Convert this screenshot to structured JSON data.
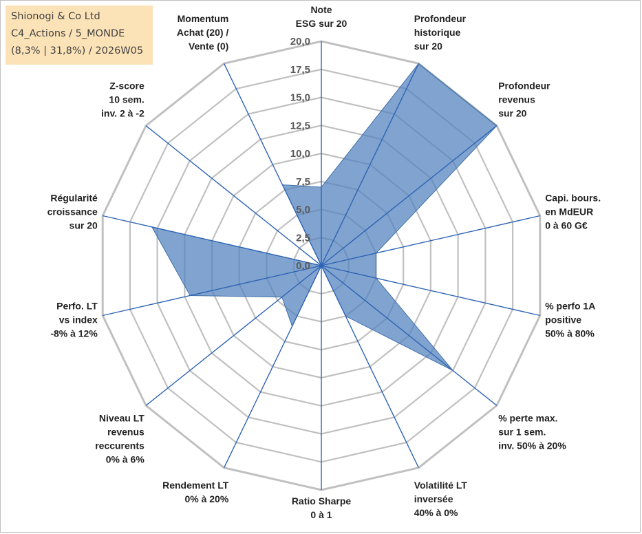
{
  "title_box": {
    "line1": "Shionogi & Co Ltd",
    "line2": "C4_Actions / 5_MONDE",
    "line3": "(8,3% | 31,8%) / 2026W05"
  },
  "colors": {
    "fill": "#4f81bd",
    "spoke": "#2e63b5",
    "grid": "#c0c0c0",
    "title_bg": "#fbe3b7"
  },
  "chart_data": {
    "type": "radar",
    "rmax": 20,
    "tick_labels": [
      "0,0",
      "2,5",
      "5,0",
      "7,5",
      "10,0",
      "12,5",
      "15,0",
      "17,5",
      "20,0"
    ],
    "grid": true,
    "axes": [
      [
        "Note",
        "ESG sur 20"
      ],
      [
        "Profondeur",
        "historique",
        "sur 20"
      ],
      [
        "Profondeur",
        "revenus",
        "sur 20"
      ],
      [
        "Capi. bours.",
        "en MdEUR",
        "0 à 60 G€"
      ],
      [
        "% perfo 1A",
        "positive",
        "50% à 80%"
      ],
      [
        "% perte max.",
        "sur 1 sem.",
        "inv. 50% à 20%"
      ],
      [
        "Volatilité LT",
        "inversée",
        "40% à 0%"
      ],
      [
        "Ratio Sharpe",
        "0 à 1"
      ],
      [
        "Rendement LT",
        "0% à 20%"
      ],
      [
        "Niveau LT",
        "revenus",
        "reccurents",
        "0% à 6%"
      ],
      [
        "Perfo. LT",
        "vs index",
        "-8% à 12%"
      ],
      [
        "Régularité",
        "croissance",
        "sur 20"
      ],
      [
        "Z-score",
        "10 sem.",
        "inv. 2 à -2"
      ],
      [
        "Momentum",
        "Achat (20) /",
        "Vente (0)"
      ]
    ],
    "values": [
      7.0,
      20.0,
      20.0,
      5.0,
      5.0,
      15.0,
      5.0,
      0.0,
      6.0,
      4.5,
      12.0,
      15.5,
      0.0,
      8.0
    ]
  }
}
